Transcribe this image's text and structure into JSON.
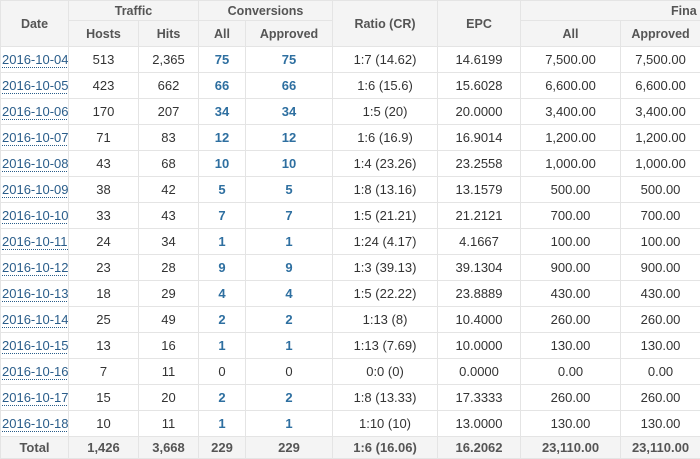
{
  "table": {
    "group_headers": [
      "Date",
      "Traffic",
      "Conversions",
      "Ratio (CR)",
      "EPC",
      "Fina"
    ],
    "sub_headers": [
      "Hosts",
      "Hits",
      "All",
      "Approved",
      "All",
      "Approved"
    ],
    "rows": [
      [
        "2016-10-04",
        "513",
        "2,365",
        "75",
        "75",
        "1:7 (14.62)",
        "14.6199",
        "7,500.00",
        "7,500.00"
      ],
      [
        "2016-10-05",
        "423",
        "662",
        "66",
        "66",
        "1:6 (15.6)",
        "15.6028",
        "6,600.00",
        "6,600.00"
      ],
      [
        "2016-10-06",
        "170",
        "207",
        "34",
        "34",
        "1:5 (20)",
        "20.0000",
        "3,400.00",
        "3,400.00"
      ],
      [
        "2016-10-07",
        "71",
        "83",
        "12",
        "12",
        "1:6 (16.9)",
        "16.9014",
        "1,200.00",
        "1,200.00"
      ],
      [
        "2016-10-08",
        "43",
        "68",
        "10",
        "10",
        "1:4 (23.26)",
        "23.2558",
        "1,000.00",
        "1,000.00"
      ],
      [
        "2016-10-09",
        "38",
        "42",
        "5",
        "5",
        "1:8 (13.16)",
        "13.1579",
        "500.00",
        "500.00"
      ],
      [
        "2016-10-10",
        "33",
        "43",
        "7",
        "7",
        "1:5 (21.21)",
        "21.2121",
        "700.00",
        "700.00"
      ],
      [
        "2016-10-11",
        "24",
        "34",
        "1",
        "1",
        "1:24 (4.17)",
        "4.1667",
        "100.00",
        "100.00"
      ],
      [
        "2016-10-12",
        "23",
        "28",
        "9",
        "9",
        "1:3 (39.13)",
        "39.1304",
        "900.00",
        "900.00"
      ],
      [
        "2016-10-13",
        "18",
        "29",
        "4",
        "4",
        "1:5 (22.22)",
        "23.8889",
        "430.00",
        "430.00"
      ],
      [
        "2016-10-14",
        "25",
        "49",
        "2",
        "2",
        "1:13 (8)",
        "10.4000",
        "260.00",
        "260.00"
      ],
      [
        "2016-10-15",
        "13",
        "16",
        "1",
        "1",
        "1:13 (7.69)",
        "10.0000",
        "130.00",
        "130.00"
      ],
      [
        "2016-10-16",
        "7",
        "11",
        "0",
        "0",
        "0:0 (0)",
        "0.0000",
        "0.00",
        "0.00"
      ],
      [
        "2016-10-17",
        "15",
        "20",
        "2",
        "2",
        "1:8 (13.33)",
        "17.3333",
        "260.00",
        "260.00"
      ],
      [
        "2016-10-18",
        "10",
        "11",
        "1",
        "1",
        "1:10 (10)",
        "13.0000",
        "130.00",
        "130.00"
      ]
    ],
    "total": [
      "Total",
      "1,426",
      "3,668",
      "229",
      "229",
      "1:6 (16.06)",
      "16.2062",
      "23,110.00",
      "23,110.00"
    ]
  }
}
